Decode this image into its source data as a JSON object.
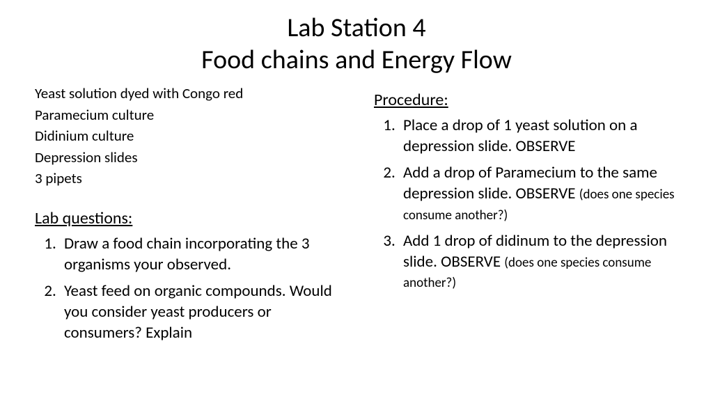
{
  "title": {
    "line1": "Lab Station 4",
    "line2": "Food chains and Energy Flow"
  },
  "materials": {
    "items": [
      "Yeast solution dyed with Congo red",
      "Paramecium culture",
      "Didinium culture",
      "Depression slides",
      "3 pipets"
    ]
  },
  "lab_questions": {
    "heading": "Lab questions:",
    "items": [
      "Draw a food chain incorporating the 3 organisms your observed.",
      "Yeast feed on organic compounds. Would you consider yeast producers or consumers? Explain"
    ]
  },
  "procedure": {
    "heading": "Procedure:",
    "steps": [
      {
        "main": "Place a drop of 1 yeast solution on a depression slide.  OBSERVE",
        "note": ""
      },
      {
        "main": "Add a drop of Paramecium to the same depression slide. OBSERVE ",
        "note": "(does one species consume another?)"
      },
      {
        "main": "Add 1 drop of didinum to the depression slide. OBSERVE ",
        "note": "(does one species consume another?)"
      }
    ]
  },
  "styles": {
    "background_color": "#ffffff",
    "text_color": "#000000",
    "title_fontsize": 38,
    "body_fontsize": 23,
    "materials_fontsize": 21,
    "note_fontsize": 19
  }
}
